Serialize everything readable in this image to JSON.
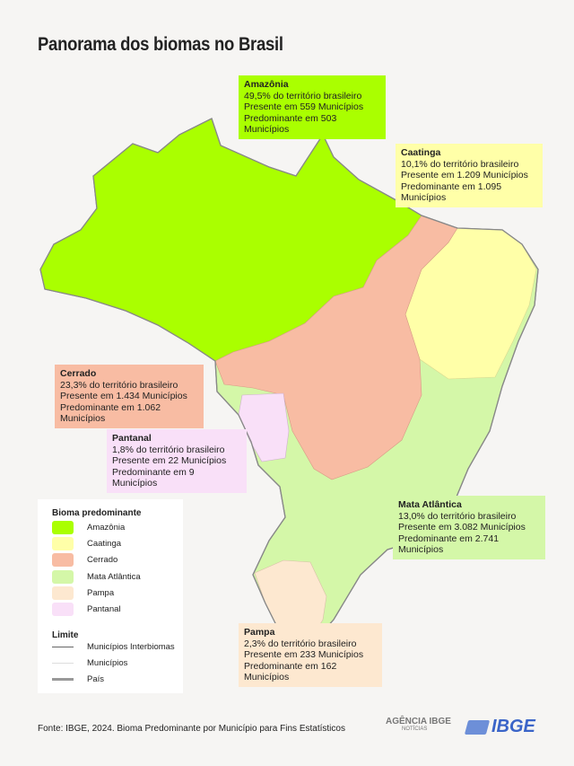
{
  "title": "Panorama dos biomas no Brasil",
  "colors": {
    "amazonia": "#aaff00",
    "caatinga": "#ffffa8",
    "cerrado": "#f8bca3",
    "mata_atlantica": "#d4f7a8",
    "pampa": "#fde8d0",
    "pantanal": "#f9e0f8"
  },
  "callouts": {
    "amazonia": {
      "name": "Amazônia",
      "share": "49,5% do território brasileiro",
      "present": "Presente em 559 Municípios",
      "predominant": "Predominante em 503 Municípios"
    },
    "caatinga": {
      "name": "Caatinga",
      "share": "10,1% do território brasileiro",
      "present": "Presente em 1.209 Municípios",
      "predominant": "Predominante em 1.095 Municípios"
    },
    "cerrado": {
      "name": "Cerrado",
      "share": "23,3% do território brasileiro",
      "present": "Presente em 1.434 Municípios",
      "predominant": "Predominante em 1.062 Municípios"
    },
    "pantanal": {
      "name": "Pantanal",
      "share": "1,8% do território brasileiro",
      "present": "Presente em 22 Municípios",
      "predominant": "Predominante em 9 Municípios"
    },
    "mata_atlantica": {
      "name": "Mata Atlântica",
      "share": "13,0% do território brasileiro",
      "present": "Presente em 3.082 Municípios",
      "predominant": "Predominante em 2.741 Municípios"
    },
    "pampa": {
      "name": "Pampa",
      "share": "2,3% do território brasileiro",
      "present": "Presente em 233 Municípios",
      "predominant": "Predominante em 162 Municípios"
    }
  },
  "legend": {
    "biome_title": "Bioma predominante",
    "biomes": [
      "Amazônia",
      "Caatinga",
      "Cerrado",
      "Mata Atlântica",
      "Pampa",
      "Pantanal"
    ],
    "limit_title": "Limite",
    "limits": [
      "Municípios Interbiomas",
      "Municípios",
      "País"
    ]
  },
  "source": "Fonte: IBGE, 2024. Bioma Predominante por Município para Fins Estatísticos",
  "logos": {
    "agencia": "AGÊNCIA IBGE",
    "agencia_sub": "NOTÍCIAS",
    "ibge": "IBGE"
  }
}
